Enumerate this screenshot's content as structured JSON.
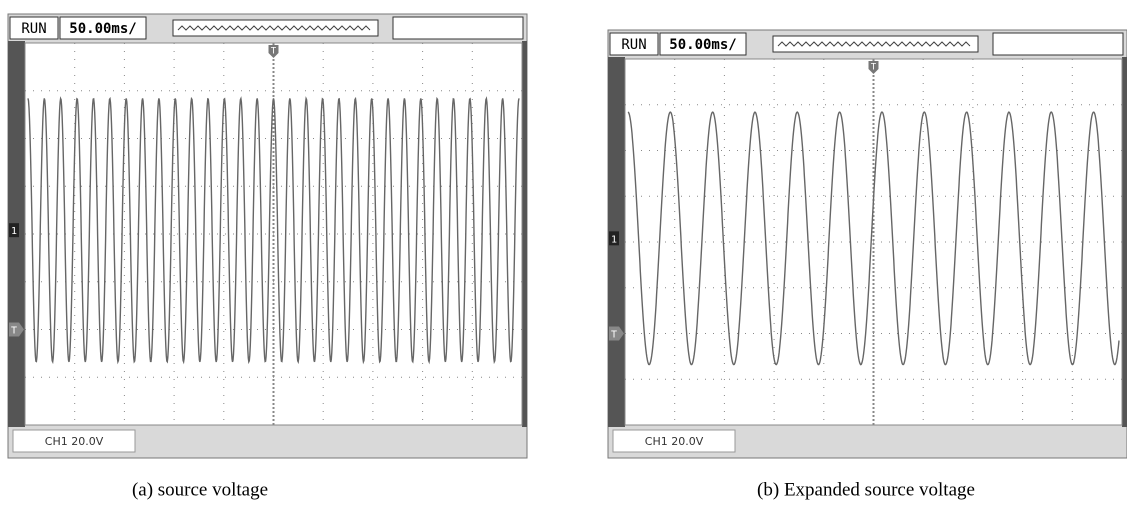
{
  "panels": [
    {
      "status": "RUN",
      "timebase": "50.00ms/",
      "trigger_top": "T",
      "channel_marker": "1",
      "trigger_marker": "T",
      "channel_scale": "CH1 20.0V",
      "caption": "(a) source voltage"
    },
    {
      "status": "RUN",
      "timebase": "50.00ms/",
      "trigger_top": "T",
      "channel_marker": "1",
      "trigger_marker": "T",
      "channel_scale": "CH1 20.0V",
      "caption": "(b) Expanded source voltage"
    }
  ]
}
